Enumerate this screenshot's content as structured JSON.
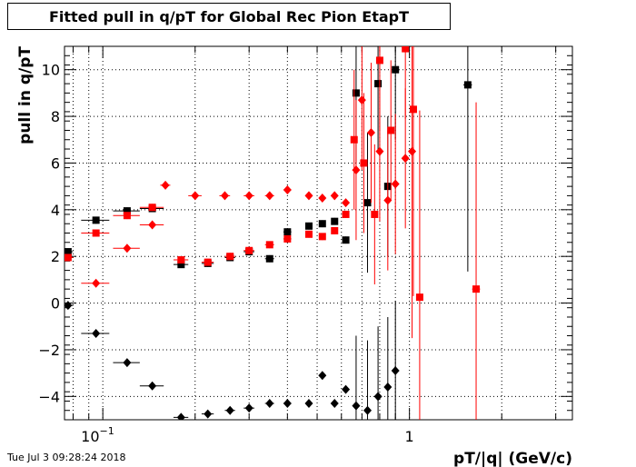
{
  "chart_data": {
    "type": "scatter",
    "title": "Fitted pull in q/pT for Global Rec Pion EtapT",
    "xlabel": "pT/|q| (GeV/c)",
    "ylabel": "pull in q/pT",
    "x_scale": "log",
    "xlim": [
      0.075,
      3.4
    ],
    "ylim": [
      -5,
      11
    ],
    "grid": true,
    "x_tick_labels": [
      "10^-1",
      "1"
    ],
    "y_tick_labels": [
      "-4",
      "-2",
      "0",
      "2",
      "4",
      "6",
      "8",
      "10"
    ],
    "series": [
      {
        "color": "#000000",
        "marker": "square",
        "points": [
          [
            0.077,
            2.2,
            0.003
          ],
          [
            0.095,
            3.55,
            0.01
          ],
          [
            0.12,
            3.95,
            0.012
          ],
          [
            0.145,
            4.05,
            0.013
          ],
          [
            0.18,
            1.65,
            0.01
          ],
          [
            0.22,
            1.7,
            0.01
          ],
          [
            0.26,
            1.95,
            0.01
          ],
          [
            0.3,
            2.2,
            0.012
          ],
          [
            0.35,
            1.9,
            0.012
          ],
          [
            0.4,
            3.05,
            0.012
          ],
          [
            0.47,
            3.3,
            0.012
          ],
          [
            0.52,
            3.4,
            0.012
          ],
          [
            0.57,
            3.5,
            0.012
          ],
          [
            0.62,
            2.7,
            0.012
          ],
          [
            0.67,
            9.0,
            0.012
          ],
          [
            0.73,
            4.3,
            0.012
          ],
          [
            0.79,
            9.4,
            0.012
          ],
          [
            0.85,
            5.0,
            0.012
          ],
          [
            0.9,
            10.0,
            0.012
          ],
          [
            1.55,
            9.35,
            0.05
          ]
        ]
      },
      {
        "color": "#ff0000",
        "marker": "square",
        "points": [
          [
            0.077,
            1.95,
            0.003
          ],
          [
            0.095,
            3.0,
            0.01
          ],
          [
            0.12,
            3.75,
            0.012
          ],
          [
            0.145,
            4.1,
            0.013
          ],
          [
            0.18,
            1.85,
            0.01
          ],
          [
            0.22,
            1.75,
            0.01
          ],
          [
            0.26,
            2.0,
            0.01
          ],
          [
            0.3,
            2.25,
            0.012
          ],
          [
            0.35,
            2.5,
            0.012
          ],
          [
            0.4,
            2.75,
            0.012
          ],
          [
            0.47,
            2.95,
            0.012
          ],
          [
            0.52,
            2.85,
            0.012
          ],
          [
            0.57,
            3.1,
            0.012
          ],
          [
            0.62,
            3.8,
            0.012
          ],
          [
            0.66,
            7.0,
            0.012
          ],
          [
            0.71,
            6.0,
            0.012
          ],
          [
            0.77,
            3.8,
            0.012
          ],
          [
            0.8,
            10.4,
            0.012
          ],
          [
            0.87,
            7.4,
            0.012
          ],
          [
            0.97,
            10.9,
            0.012
          ],
          [
            1.03,
            8.3,
            0.012
          ],
          [
            1.08,
            0.25,
            0.012
          ],
          [
            1.65,
            0.6,
            0.05
          ]
        ]
      },
      {
        "color": "#ff0000",
        "marker": "diamond",
        "points": [
          [
            0.095,
            0.85,
            0.01
          ],
          [
            0.12,
            2.35,
            0.012
          ],
          [
            0.145,
            3.35,
            0.013
          ],
          [
            0.16,
            5.05,
            0.006
          ],
          [
            0.2,
            4.6,
            0.01
          ],
          [
            0.25,
            4.6,
            0.01
          ],
          [
            0.3,
            4.6,
            0.012
          ],
          [
            0.35,
            4.6,
            0.012
          ],
          [
            0.4,
            4.85,
            0.012
          ],
          [
            0.47,
            4.6,
            0.012
          ],
          [
            0.52,
            4.5,
            0.012
          ],
          [
            0.57,
            4.6,
            0.012
          ],
          [
            0.62,
            4.3,
            0.012
          ],
          [
            0.67,
            5.7,
            0.012
          ],
          [
            0.7,
            8.7,
            0.012
          ],
          [
            0.75,
            7.3,
            0.012
          ],
          [
            0.8,
            6.5,
            0.012
          ],
          [
            0.85,
            4.4,
            0.012
          ],
          [
            0.9,
            5.1,
            0.012
          ],
          [
            0.97,
            6.2,
            0.012
          ],
          [
            1.02,
            6.5,
            0.012
          ]
        ]
      },
      {
        "color": "#000000",
        "marker": "diamond",
        "points": [
          [
            0.077,
            -0.1,
            0.003
          ],
          [
            0.095,
            -1.3,
            0.01
          ],
          [
            0.12,
            -2.55,
            0.012
          ],
          [
            0.145,
            -3.55,
            0.013
          ],
          [
            0.18,
            -4.9,
            0.01
          ],
          [
            0.22,
            -4.75,
            0.01
          ],
          [
            0.26,
            -4.6,
            0.01
          ],
          [
            0.3,
            -4.5,
            0.012
          ],
          [
            0.35,
            -4.3,
            0.012
          ],
          [
            0.4,
            -4.3,
            0.012
          ],
          [
            0.47,
            -4.3,
            0.012
          ],
          [
            0.52,
            -3.1,
            0.012
          ],
          [
            0.57,
            -4.3,
            0.012
          ],
          [
            0.62,
            -3.7,
            0.012
          ],
          [
            0.67,
            -4.4,
            0.012
          ],
          [
            0.73,
            -4.6,
            0.012
          ],
          [
            0.79,
            -4.0,
            0.012
          ],
          [
            0.85,
            -3.6,
            0.012
          ],
          [
            0.9,
            -2.9,
            0.012
          ]
        ]
      }
    ]
  },
  "footer": {
    "date": "Tue Jul  3 09:28:24 2018"
  }
}
